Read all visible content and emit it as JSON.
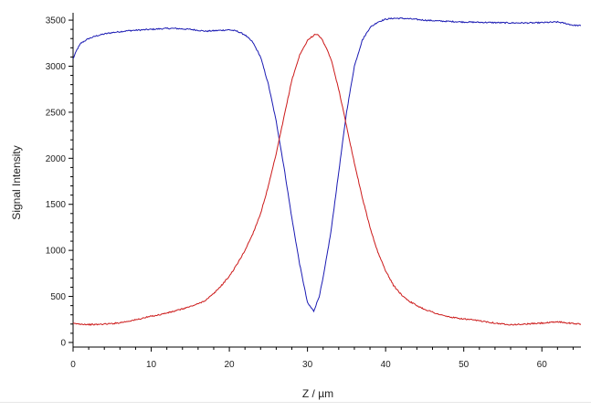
{
  "chart_data": {
    "type": "line",
    "title": "",
    "xlabel": "Z / µm",
    "ylabel": "Signal  Intensity",
    "xlim": [
      0,
      65
    ],
    "ylim": [
      -50,
      3580
    ],
    "x_ticks": [
      0,
      10,
      20,
      30,
      40,
      50,
      60
    ],
    "y_ticks": [
      0,
      500,
      1000,
      1500,
      2000,
      2500,
      3000,
      3500
    ],
    "x_tick_labels": [
      "0",
      "10",
      "20",
      "30",
      "40",
      "50",
      "60"
    ],
    "y_tick_labels": [
      "0",
      "500",
      "1000",
      "1500",
      "2000",
      "2500",
      "3000",
      "3500"
    ],
    "grid": false,
    "legend": "none",
    "series": [
      {
        "color": "#1a1ab3",
        "points": [
          [
            0,
            3080
          ],
          [
            0.5,
            3180
          ],
          [
            1,
            3250
          ],
          [
            2,
            3300
          ],
          [
            3,
            3330
          ],
          [
            4,
            3350
          ],
          [
            5,
            3365
          ],
          [
            6,
            3375
          ],
          [
            7,
            3385
          ],
          [
            8,
            3390
          ],
          [
            9,
            3395
          ],
          [
            10,
            3400
          ],
          [
            11,
            3405
          ],
          [
            12,
            3410
          ],
          [
            13,
            3410
          ],
          [
            14,
            3405
          ],
          [
            15,
            3400
          ],
          [
            16,
            3390
          ],
          [
            17,
            3380
          ],
          [
            18,
            3385
          ],
          [
            19,
            3390
          ],
          [
            20,
            3395
          ],
          [
            21,
            3380
          ],
          [
            22,
            3340
          ],
          [
            23,
            3260
          ],
          [
            24,
            3100
          ],
          [
            25,
            2800
          ],
          [
            26,
            2400
          ],
          [
            27,
            1900
          ],
          [
            28,
            1350
          ],
          [
            29,
            850
          ],
          [
            30,
            430
          ],
          [
            30.8,
            340
          ],
          [
            31.5,
            500
          ],
          [
            32,
            700
          ],
          [
            33,
            1200
          ],
          [
            34,
            1850
          ],
          [
            35,
            2500
          ],
          [
            36,
            3000
          ],
          [
            37,
            3280
          ],
          [
            38,
            3420
          ],
          [
            39,
            3480
          ],
          [
            40,
            3510
          ],
          [
            41,
            3520
          ],
          [
            42,
            3520
          ],
          [
            43,
            3515
          ],
          [
            45,
            3500
          ],
          [
            47,
            3490
          ],
          [
            50,
            3480
          ],
          [
            53,
            3475
          ],
          [
            56,
            3470
          ],
          [
            59,
            3470
          ],
          [
            62,
            3480
          ],
          [
            63,
            3465
          ],
          [
            64,
            3445
          ],
          [
            65,
            3440
          ]
        ]
      },
      {
        "color": "#cc1a1a",
        "points": [
          [
            0,
            205
          ],
          [
            1,
            200
          ],
          [
            2,
            195
          ],
          [
            3,
            195
          ],
          [
            4,
            200
          ],
          [
            5,
            205
          ],
          [
            6,
            215
          ],
          [
            7,
            230
          ],
          [
            8,
            245
          ],
          [
            9,
            265
          ],
          [
            10,
            285
          ],
          [
            11,
            300
          ],
          [
            12,
            320
          ],
          [
            13,
            340
          ],
          [
            14,
            365
          ],
          [
            15,
            390
          ],
          [
            16,
            420
          ],
          [
            17,
            460
          ],
          [
            18,
            530
          ],
          [
            19,
            620
          ],
          [
            20,
            720
          ],
          [
            21,
            850
          ],
          [
            22,
            1000
          ],
          [
            23,
            1180
          ],
          [
            24,
            1400
          ],
          [
            25,
            1700
          ],
          [
            26,
            2050
          ],
          [
            27,
            2450
          ],
          [
            28,
            2850
          ],
          [
            29,
            3120
          ],
          [
            30,
            3280
          ],
          [
            31,
            3350
          ],
          [
            31.5,
            3330
          ],
          [
            32,
            3270
          ],
          [
            33,
            3080
          ],
          [
            34,
            2750
          ],
          [
            35,
            2350
          ],
          [
            36,
            1950
          ],
          [
            37,
            1580
          ],
          [
            38,
            1250
          ],
          [
            39,
            980
          ],
          [
            40,
            780
          ],
          [
            41,
            620
          ],
          [
            42,
            520
          ],
          [
            43,
            450
          ],
          [
            44,
            400
          ],
          [
            45,
            360
          ],
          [
            46,
            330
          ],
          [
            47,
            300
          ],
          [
            48,
            280
          ],
          [
            49,
            265
          ],
          [
            50,
            255
          ],
          [
            51,
            245
          ],
          [
            52,
            235
          ],
          [
            53,
            225
          ],
          [
            54,
            210
          ],
          [
            55,
            200
          ],
          [
            56,
            195
          ],
          [
            57,
            195
          ],
          [
            58,
            200
          ],
          [
            59,
            205
          ],
          [
            60,
            210
          ],
          [
            61,
            215
          ],
          [
            62,
            225
          ],
          [
            63,
            215
          ],
          [
            64,
            205
          ],
          [
            65,
            200
          ]
        ]
      }
    ]
  }
}
